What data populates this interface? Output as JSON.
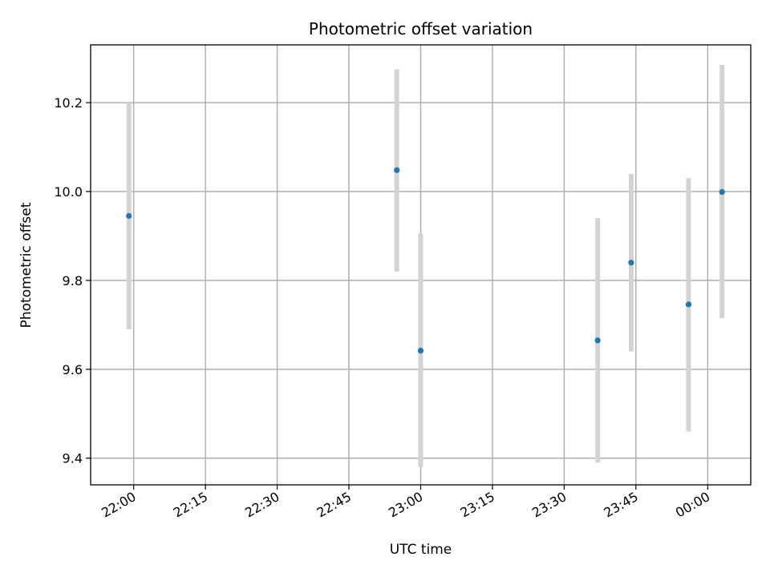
{
  "chart_data": {
    "type": "scatter",
    "title": "Photometric offset variation",
    "xlabel": "UTC time",
    "ylabel": "Photometric offset",
    "x_ticks": [
      "22:00",
      "22:15",
      "22:30",
      "22:45",
      "23:00",
      "23:15",
      "23:30",
      "23:45",
      "00:00"
    ],
    "y_ticks": [
      "9.4",
      "9.6",
      "9.8",
      "10.0",
      "10.2"
    ],
    "xlim": [
      "21:51",
      "00:09"
    ],
    "ylim": [
      9.34,
      10.33
    ],
    "grid": true,
    "points": [
      {
        "x": "21:59",
        "y": 9.945,
        "err_low": 9.69,
        "err_high": 10.2
      },
      {
        "x": "22:55",
        "y": 10.048,
        "err_low": 9.82,
        "err_high": 10.275
      },
      {
        "x": "23:00",
        "y": 9.642,
        "err_low": 9.38,
        "err_high": 9.905
      },
      {
        "x": "23:37",
        "y": 9.665,
        "err_low": 9.39,
        "err_high": 9.94
      },
      {
        "x": "23:44",
        "y": 9.84,
        "err_low": 9.64,
        "err_high": 10.04
      },
      {
        "x": "23:56",
        "y": 9.746,
        "err_low": 9.46,
        "err_high": 10.03
      },
      {
        "x": "00:03",
        "y": 9.999,
        "err_low": 9.715,
        "err_high": 10.285
      }
    ],
    "colors": {
      "point": "#1f77b4",
      "errorbar": "#d3d3d3",
      "grid": "#b0b0b0",
      "axes": "#000000"
    }
  }
}
